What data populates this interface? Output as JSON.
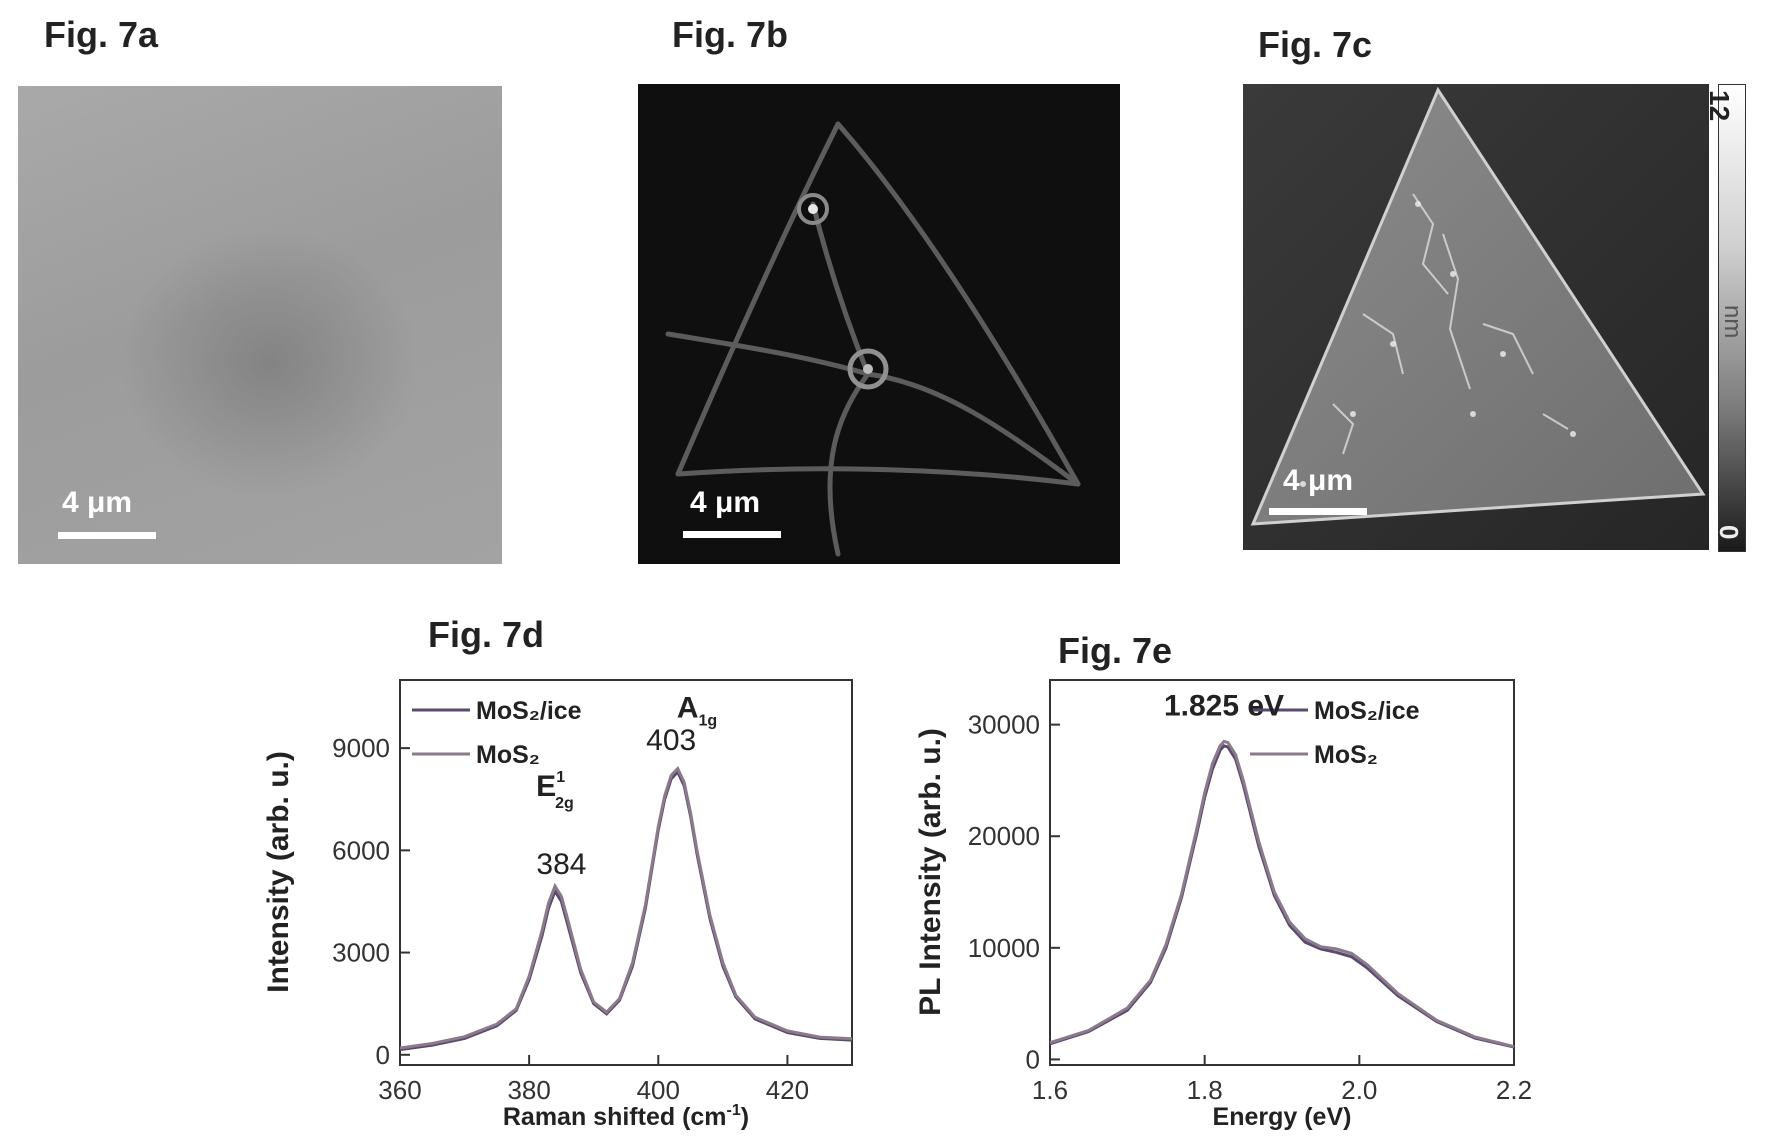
{
  "figures": {
    "a": {
      "label": "Fig. 7a",
      "scale_label": "4 μm"
    },
    "b": {
      "label": "Fig. 7b",
      "scale_label": "4 μm"
    },
    "c": {
      "label": "Fig. 7c",
      "scale_label": "4 μm",
      "colorbar": {
        "max_label": "12",
        "unit": "nm",
        "min_label": "0"
      }
    },
    "d": {
      "label": "Fig. 7d"
    },
    "e": {
      "label": "Fig. 7e"
    }
  },
  "chart_data": [
    {
      "id": "7d",
      "type": "line",
      "xlabel": "Raman shifted (cm-1)",
      "ylabel": "Intensity (arb. u.)",
      "xlim": [
        360,
        430
      ],
      "ylim": [
        -300,
        11000
      ],
      "xticks": [
        360,
        380,
        400,
        420
      ],
      "yticks": [
        0,
        3000,
        6000,
        9000
      ],
      "legend_placement": "top-left",
      "series": [
        {
          "name": "MoS2/ice",
          "color": "#5a4a6e",
          "x": [
            360,
            365,
            370,
            375,
            378,
            380,
            382,
            383,
            384,
            385,
            386,
            388,
            390,
            392,
            394,
            396,
            398,
            400,
            401,
            402,
            403,
            404,
            405,
            406,
            408,
            410,
            412,
            415,
            420,
            425,
            430
          ],
          "y": [
            150,
            280,
            480,
            850,
            1300,
            2200,
            3500,
            4300,
            4800,
            4500,
            3800,
            2400,
            1500,
            1200,
            1600,
            2600,
            4300,
            6600,
            7500,
            8100,
            8300,
            7900,
            7000,
            5900,
            4000,
            2600,
            1700,
            1050,
            650,
            480,
            430
          ]
        },
        {
          "name": "MoS2",
          "color": "#8a7a8a",
          "x": [
            360,
            365,
            370,
            375,
            378,
            380,
            382,
            383,
            384,
            385,
            386,
            388,
            390,
            392,
            394,
            396,
            398,
            400,
            401,
            402,
            403,
            404,
            405,
            406,
            408,
            410,
            412,
            415,
            420,
            425,
            430
          ],
          "y": [
            200,
            330,
            530,
            900,
            1350,
            2300,
            3650,
            4450,
            4950,
            4650,
            3950,
            2500,
            1550,
            1250,
            1650,
            2700,
            4400,
            6700,
            7600,
            8200,
            8400,
            8000,
            7100,
            6000,
            4100,
            2700,
            1750,
            1100,
            700,
            520,
            470
          ]
        }
      ],
      "annotations": [
        {
          "text": "384",
          "x": 385,
          "y": 5300
        },
        {
          "text": "E",
          "sup": "1",
          "sub": "2g",
          "x": 384,
          "y": 7600
        },
        {
          "text": "403",
          "x": 402,
          "y": 8950
        },
        {
          "text": "A",
          "sub": "1g",
          "x": 406,
          "y": 9900
        }
      ]
    },
    {
      "id": "7e",
      "type": "line",
      "xlabel": "Energy (eV)",
      "ylabel": "PL Intensity (arb. u.)",
      "xlim": [
        1.6,
        2.2
      ],
      "ylim": [
        -500,
        34000
      ],
      "xticks": [
        1.6,
        1.8,
        2.0,
        2.2
      ],
      "yticks": [
        0,
        10000,
        20000,
        30000
      ],
      "legend_placement": "top-right",
      "series": [
        {
          "name": "MoS2/ice",
          "color": "#5a4a6e",
          "x": [
            1.6,
            1.65,
            1.7,
            1.73,
            1.75,
            1.77,
            1.79,
            1.8,
            1.81,
            1.82,
            1.825,
            1.83,
            1.84,
            1.85,
            1.87,
            1.89,
            1.91,
            1.93,
            1.95,
            1.97,
            1.99,
            2.01,
            2.05,
            2.1,
            2.15,
            2.2
          ],
          "y": [
            1400,
            2500,
            4400,
            6900,
            10000,
            14500,
            20300,
            23500,
            26000,
            27700,
            28100,
            28000,
            26900,
            24600,
            19100,
            14700,
            12000,
            10500,
            9900,
            9600,
            9200,
            8200,
            5700,
            3400,
            1900,
            1100
          ]
        },
        {
          "name": "MoS2",
          "color": "#8a7a8a",
          "x": [
            1.6,
            1.65,
            1.7,
            1.73,
            1.75,
            1.77,
            1.79,
            1.8,
            1.81,
            1.82,
            1.825,
            1.83,
            1.84,
            1.85,
            1.87,
            1.89,
            1.91,
            1.93,
            1.95,
            1.97,
            1.99,
            2.01,
            2.05,
            2.1,
            2.15,
            2.2
          ],
          "y": [
            1500,
            2600,
            4600,
            7100,
            10300,
            14800,
            20700,
            23900,
            26500,
            28100,
            28500,
            28400,
            27300,
            25000,
            19500,
            15000,
            12300,
            10800,
            10100,
            9900,
            9500,
            8500,
            5900,
            3500,
            2000,
            1150
          ]
        }
      ],
      "annotations": [
        {
          "text": "1.825 eV",
          "x": 1.825,
          "y": 30800
        }
      ]
    }
  ]
}
